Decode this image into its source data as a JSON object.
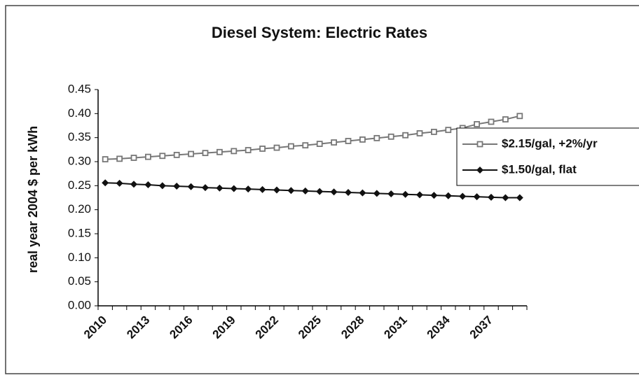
{
  "chart_data": {
    "type": "line",
    "title": "Diesel System: Electric Rates",
    "y_label": "real year 2004 $ per kWh",
    "categories": [
      "2010",
      null,
      null,
      "2013",
      null,
      null,
      "2016",
      null,
      null,
      "2019",
      null,
      null,
      "2022",
      null,
      null,
      "2025",
      null,
      null,
      "2028",
      null,
      null,
      "2031",
      null,
      null,
      "2034",
      null,
      null,
      "2037",
      null,
      null
    ],
    "series": [
      {
        "name": "$2.15/gal, +2%/yr",
        "color": "#777777",
        "marker": "square",
        "values": [
          0.305,
          0.306,
          0.308,
          0.31,
          0.312,
          0.314,
          0.316,
          0.318,
          0.32,
          0.322,
          0.324,
          0.327,
          0.329,
          0.332,
          0.334,
          0.337,
          0.34,
          0.343,
          0.346,
          0.349,
          0.352,
          0.355,
          0.359,
          0.362,
          0.366,
          0.37,
          0.378,
          0.383,
          0.388,
          0.395
        ]
      },
      {
        "name": "$1.50/gal, flat",
        "color": "#111111",
        "marker": "diamond",
        "values": [
          0.256,
          0.255,
          0.253,
          0.252,
          0.25,
          0.249,
          0.248,
          0.246,
          0.245,
          0.244,
          0.243,
          0.242,
          0.241,
          0.24,
          0.239,
          0.238,
          0.237,
          0.236,
          0.235,
          0.234,
          0.233,
          0.232,
          0.231,
          0.23,
          0.229,
          0.228,
          0.227,
          0.226,
          0.225,
          0.225
        ]
      }
    ],
    "ylim": [
      0,
      0.45
    ],
    "yticks": [
      {
        "value": 0,
        "label": "0.00"
      },
      0.05,
      {
        "value": 0.1,
        "label": "0.10"
      },
      0.15,
      {
        "value": 0.2,
        "label": "0.20"
      },
      0.25,
      {
        "value": 0.3,
        "label": "0.30"
      },
      0.35,
      {
        "value": 0.4,
        "label": "0.40"
      },
      0.45
    ],
    "grid": false,
    "legend": "right"
  }
}
